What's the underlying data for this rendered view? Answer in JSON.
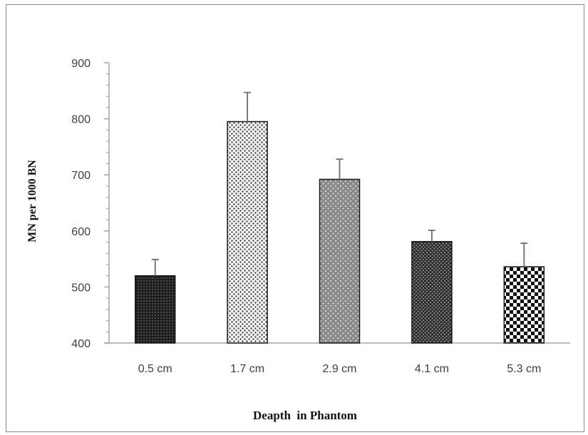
{
  "chart_data": {
    "type": "bar",
    "categories": [
      "0.5 cm",
      "1.7 cm",
      "2.9 cm",
      "4.1 cm",
      "5.3 cm"
    ],
    "values": [
      520,
      795,
      692,
      581,
      536
    ],
    "errors": [
      29,
      52,
      36,
      20,
      42
    ],
    "xlabel": "Deapth  in Phantom",
    "ylabel": "MN per 1000 BN",
    "ylim": [
      400,
      900
    ],
    "yticks": [
      400,
      500,
      600,
      700,
      800,
      900
    ],
    "bar_patterns": [
      "dense-dark-dots",
      "light-dots",
      "grey-dots",
      "dark-dots",
      "checkerboard"
    ],
    "grid": false,
    "legend": "none",
    "colors": {
      "axis": "#a6a6a6",
      "bar_outline": "#1a1a1a",
      "error_bar": "#6e6e6e"
    }
  }
}
